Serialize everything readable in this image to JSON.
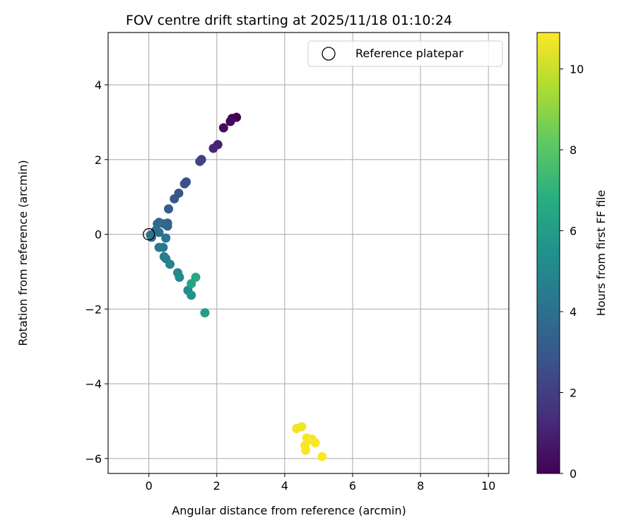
{
  "chart_data": {
    "type": "scatter",
    "title": "FOV centre drift starting at 2025/11/18 01:10:24",
    "xlabel": "Angular distance from reference (arcmin)",
    "ylabel": "Rotation from reference (arcmin)",
    "xlim": [
      -1.2,
      10.6
    ],
    "ylim": [
      -6.4,
      5.4
    ],
    "xticks": [
      0,
      2,
      4,
      6,
      8,
      10
    ],
    "xtick_labels": [
      "0",
      "2",
      "4",
      "6",
      "8",
      "10"
    ],
    "yticks": [
      -6,
      -4,
      -2,
      0,
      2,
      4
    ],
    "ytick_labels": [
      "−6",
      "−4",
      "−2",
      "0",
      "2",
      "4"
    ],
    "grid": true,
    "legend": {
      "position": "top-right",
      "entries": [
        {
          "label": "Reference platepar",
          "marker": "open-circle"
        }
      ]
    },
    "reference_point": {
      "x": 0,
      "y": 0,
      "label": "Reference platepar"
    },
    "colorbar": {
      "label": "Hours from first FF file",
      "range": [
        0,
        10.9
      ],
      "ticks": [
        0,
        2,
        4,
        6,
        8,
        10
      ],
      "tick_labels": [
        "0",
        "2",
        "4",
        "6",
        "8",
        "10"
      ],
      "colormap": "viridis"
    },
    "points": [
      {
        "x": 2.58,
        "y": 3.13,
        "c": 0.0
      },
      {
        "x": 2.45,
        "y": 3.1,
        "c": 0.1
      },
      {
        "x": 2.4,
        "y": 3.02,
        "c": 0.2
      },
      {
        "x": 2.2,
        "y": 2.85,
        "c": 0.3
      },
      {
        "x": 2.03,
        "y": 2.4,
        "c": 1.0
      },
      {
        "x": 1.9,
        "y": 2.3,
        "c": 1.2
      },
      {
        "x": 1.55,
        "y": 2.0,
        "c": 2.0
      },
      {
        "x": 1.5,
        "y": 1.95,
        "c": 2.2
      },
      {
        "x": 1.1,
        "y": 1.4,
        "c": 2.6
      },
      {
        "x": 1.05,
        "y": 1.35,
        "c": 2.7
      },
      {
        "x": 0.88,
        "y": 1.1,
        "c": 2.9
      },
      {
        "x": 0.75,
        "y": 0.95,
        "c": 3.0
      },
      {
        "x": 0.58,
        "y": 0.68,
        "c": 3.2
      },
      {
        "x": 0.55,
        "y": 0.3,
        "c": 3.4
      },
      {
        "x": 0.55,
        "y": 0.22,
        "c": 3.5
      },
      {
        "x": 0.45,
        "y": 0.28,
        "c": 3.6
      },
      {
        "x": 0.3,
        "y": 0.32,
        "c": 3.7
      },
      {
        "x": 0.25,
        "y": 0.28,
        "c": 3.8
      },
      {
        "x": 0.2,
        "y": 0.1,
        "c": 3.9
      },
      {
        "x": 0.05,
        "y": -0.02,
        "c": 4.0
      },
      {
        "x": 0.08,
        "y": -0.08,
        "c": 4.1
      },
      {
        "x": 0.3,
        "y": 0.05,
        "c": 4.0
      },
      {
        "x": 0.5,
        "y": -0.1,
        "c": 4.2
      },
      {
        "x": 0.3,
        "y": -0.35,
        "c": 4.4
      },
      {
        "x": 0.42,
        "y": -0.35,
        "c": 4.4
      },
      {
        "x": 0.45,
        "y": -0.6,
        "c": 4.5
      },
      {
        "x": 0.5,
        "y": -0.65,
        "c": 4.6
      },
      {
        "x": 0.62,
        "y": -0.8,
        "c": 4.8
      },
      {
        "x": 0.85,
        "y": -1.03,
        "c": 5.0
      },
      {
        "x": 0.9,
        "y": -1.15,
        "c": 5.1
      },
      {
        "x": 1.15,
        "y": -1.5,
        "c": 5.3
      },
      {
        "x": 1.25,
        "y": -1.63,
        "c": 5.5
      },
      {
        "x": 1.25,
        "y": -1.32,
        "c": 6.3
      },
      {
        "x": 1.38,
        "y": -1.15,
        "c": 6.5
      },
      {
        "x": 1.65,
        "y": -2.1,
        "c": 6.0
      },
      {
        "x": 4.35,
        "y": -5.2,
        "c": 10.7
      },
      {
        "x": 4.5,
        "y": -5.15,
        "c": 10.7
      },
      {
        "x": 4.65,
        "y": -5.45,
        "c": 10.8
      },
      {
        "x": 4.7,
        "y": -5.5,
        "c": 10.8
      },
      {
        "x": 4.8,
        "y": -5.48,
        "c": 10.8
      },
      {
        "x": 4.6,
        "y": -5.65,
        "c": 10.8
      },
      {
        "x": 4.62,
        "y": -5.78,
        "c": 10.8
      },
      {
        "x": 4.9,
        "y": -5.58,
        "c": 10.9
      },
      {
        "x": 5.1,
        "y": -5.95,
        "c": 10.9
      }
    ]
  }
}
